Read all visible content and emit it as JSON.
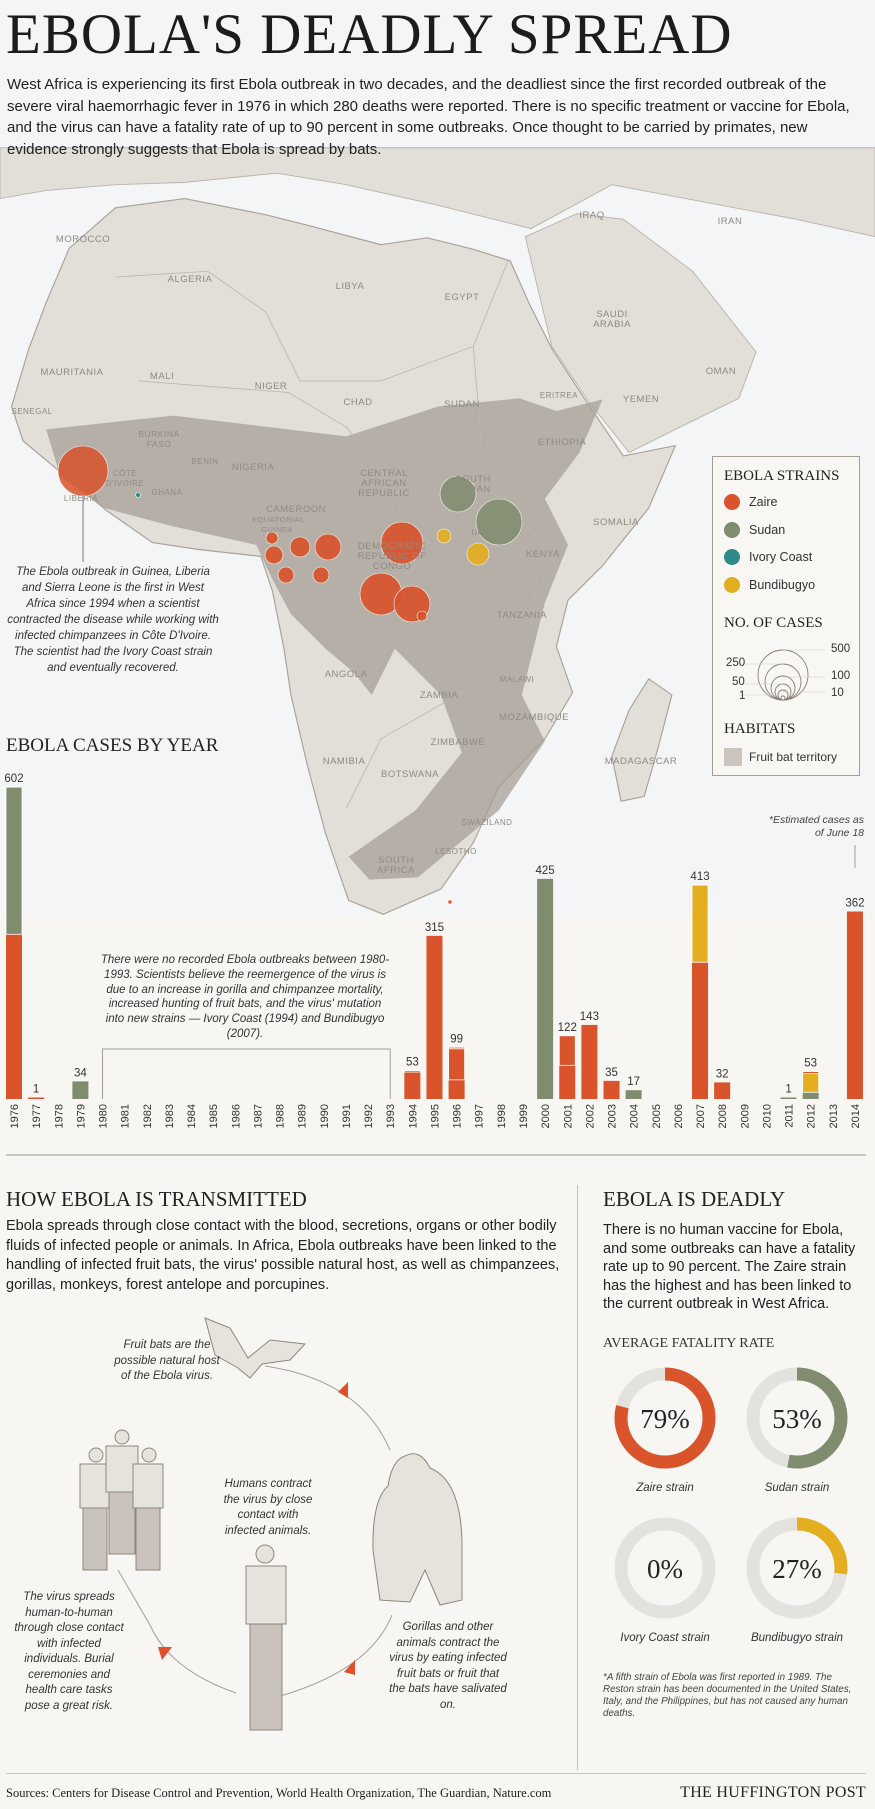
{
  "title": "EBOLA'S DEADLY SPREAD",
  "intro": "West Africa is experiencing its first Ebola outbreak in two decades, and the deadliest since the first recorded outbreak of the severe viral haemorrhagic fever in 1976 in which 280 deaths were reported. There is no specific treatment or vaccine for Ebola, and the virus can have a fatality rate of up to 90 percent in some outbreaks. Once thought to be carried by primates, new evidence strongly suggests that Ebola is spread by bats.",
  "colors": {
    "zaire": "#d9532b",
    "sudan": "#7f8c6d",
    "ivory_coast": "#2f8a8a",
    "bundibugyo": "#e3ae1f",
    "habitat": "#a79f95",
    "land": "#e2dfd9",
    "track": "#e4e2dc"
  },
  "map": {
    "labels": [
      "MOROCCO",
      "ALGERIA",
      "LIBYA",
      "EGYPT",
      "IRAQ",
      "IRAN",
      "SAUDI ARABIA",
      "OMAN",
      "YEMEN",
      "MAURITANIA",
      "MALI",
      "NIGER",
      "CHAD",
      "SUDAN",
      "ERITREA",
      "ETHIOPIA",
      "SOMALIA",
      "SENEGAL",
      "BURKINA FASO",
      "NIGERIA",
      "GHANA",
      "CÔTE D'IVOIRE",
      "LIBERIA",
      "CAMEROON",
      "CENTRAL AFRICAN REPUBLIC",
      "SOUTH SUDAN",
      "DEMOCRATIC REPUBLIC OF CONGO",
      "KENYA",
      "TANZANIA",
      "ANGOLA",
      "ZAMBIA",
      "MALAWI",
      "MOZAMBIQUE",
      "NAMIBIA",
      "BOTSWANA",
      "ZIMBABWE",
      "MADAGASCAR",
      "SOUTH AFRICA",
      "SWAZILAND",
      "LESOTHO",
      "EQUATORIAL GUINEA",
      "UGANDA",
      "BENIN"
    ],
    "note": "The Ebola outbreak in Guinea, Liberia and Sierra Leone is the first in West Africa since 1994 when a scientist contracted the disease while working with infected chimpanzees in Côte D'Ivoire. The scientist had the Ivory Coast strain and eventually recovered."
  },
  "legend": {
    "strains_title": "EBOLA STRAINS",
    "strains": [
      "Zaire",
      "Sudan",
      "Ivory Coast",
      "Bundibugyo"
    ],
    "cases_title": "NO. OF CASES",
    "cases_sizes": [
      "500",
      "250",
      "100",
      "50",
      "10",
      "1"
    ],
    "habitats_title": "HABITATS",
    "habitat_item": "Fruit bat territory"
  },
  "chart_data": {
    "type": "bar",
    "stacked": true,
    "title": "EBOLA CASES BY YEAR",
    "xlabel": "",
    "ylabel": "",
    "ylim": [
      0,
      602
    ],
    "categories": [
      "1976",
      "1977",
      "1978",
      "1979",
      "1980",
      "1981",
      "1982",
      "1983",
      "1984",
      "1985",
      "1986",
      "1987",
      "1988",
      "1989",
      "1990",
      "1991",
      "1992",
      "1993",
      "1994",
      "1995",
      "1996",
      "1997",
      "1998",
      "1999",
      "2000",
      "2001",
      "2002",
      "2003",
      "2004",
      "2005",
      "2006",
      "2007",
      "2008",
      "2009",
      "2010",
      "2011",
      "2012",
      "2013",
      "2014"
    ],
    "bars": [
      {
        "year": "1976",
        "total": 602,
        "segments": [
          {
            "strain": "zaire",
            "value": 318
          },
          {
            "strain": "sudan",
            "value": 284
          }
        ]
      },
      {
        "year": "1977",
        "total": 1,
        "segments": [
          {
            "strain": "zaire",
            "value": 1
          }
        ]
      },
      {
        "year": "1979",
        "total": 34,
        "segments": [
          {
            "strain": "sudan",
            "value": 34
          }
        ]
      },
      {
        "year": "1994",
        "total": 53,
        "segments": [
          {
            "strain": "zaire",
            "value": 52
          },
          {
            "strain": "ivory_coast",
            "value": 1
          }
        ]
      },
      {
        "year": "1995",
        "total": 315,
        "segments": [
          {
            "strain": "zaire",
            "value": 315
          }
        ]
      },
      {
        "year": "1996",
        "total": 99,
        "segments": [
          {
            "strain": "zaire",
            "value": 37
          },
          {
            "strain": "zaire",
            "value": 60
          },
          {
            "strain": "zaire",
            "value": 2
          }
        ]
      },
      {
        "year": "2000",
        "total": 425,
        "segments": [
          {
            "strain": "sudan",
            "value": 425
          }
        ]
      },
      {
        "year": "2001",
        "total": 122,
        "segments": [
          {
            "strain": "zaire",
            "value": 65
          },
          {
            "strain": "zaire",
            "value": 57
          }
        ]
      },
      {
        "year": "2002",
        "total": 143,
        "segments": [
          {
            "strain": "zaire",
            "value": 143
          }
        ]
      },
      {
        "year": "2003",
        "total": 35,
        "segments": [
          {
            "strain": "zaire",
            "value": 35
          }
        ]
      },
      {
        "year": "2004",
        "total": 17,
        "segments": [
          {
            "strain": "sudan",
            "value": 17
          }
        ]
      },
      {
        "year": "2007",
        "total": 413,
        "segments": [
          {
            "strain": "zaire",
            "value": 264
          },
          {
            "strain": "bundibugyo",
            "value": 149
          }
        ]
      },
      {
        "year": "2008",
        "total": 32,
        "segments": [
          {
            "strain": "zaire",
            "value": 32
          }
        ]
      },
      {
        "year": "2011",
        "total": 1,
        "segments": [
          {
            "strain": "sudan",
            "value": 1
          }
        ]
      },
      {
        "year": "2012",
        "total": 53,
        "segments": [
          {
            "strain": "sudan",
            "value": 13
          },
          {
            "strain": "bundibugyo",
            "value": 36
          },
          {
            "strain": "zaire",
            "value": 4
          }
        ]
      },
      {
        "year": "2014",
        "total": 362,
        "segments": [
          {
            "strain": "zaire",
            "value": 362
          }
        ]
      }
    ],
    "annotations": {
      "gap_note": "There were no recorded Ebola outbreaks between 1980-1993. Scientists believe the reemergence of the virus is due to an increase in gorilla and chimpanzee mortality, increased hunting of fruit bats, and the virus' mutation into new strains — Ivory Coast (1994) and Bundibugyo (2007).",
      "gap_range": [
        "1980",
        "1993"
      ],
      "estimate_note": "*Estimated cases as of June 18",
      "estimate_year": "2014"
    }
  },
  "transmission": {
    "heading": "HOW EBOLA IS TRANSMITTED",
    "body": "Ebola spreads through close contact with the blood, secretions, organs or other bodily fluids of infected people or animals. In Africa, Ebola outbreaks have been linked to the handling of infected fruit bats, the virus' possible natural host, as well as chimpanzees, gorillas, monkeys, forest antelope and porcupines.",
    "bats": "Fruit bats are the possible natural host of the Ebola virus.",
    "humans": "Humans contract the virus by close contact with infected animals.",
    "gorillas": "Gorillas and other animals contract the virus by eating infected fruit bats or fruit that the bats have salivated on.",
    "spread": "The virus spreads human-to-human through close contact with infected individuals. Burial ceremonies and health care tasks pose a great risk."
  },
  "deadly": {
    "heading": "EBOLA IS DEADLY",
    "body": "There is no human vaccine for Ebola, and some outbreaks can have a fatality rate up to 90 percent. The Zaire strain has the highest and has been linked to the current outbreak in West Africa.",
    "subheading": "AVERAGE FATALITY RATE",
    "rates": [
      {
        "label": "79%",
        "value": 79,
        "name": "Zaire strain",
        "color": "#d9532b"
      },
      {
        "label": "53%",
        "value": 53,
        "name": "Sudan strain",
        "color": "#7f8c6d"
      },
      {
        "label": "0%",
        "value": 0,
        "name": "Ivory Coast strain",
        "color": "#2f8a8a"
      },
      {
        "label": "27%",
        "value": 27,
        "name": "Bundibugyo strain",
        "color": "#e3ae1f"
      }
    ],
    "footnote": "*A fifth strain of Ebola was first reported in 1989. The Reston strain has been documented in the United States, Italy, and the Philippines, but has not caused any human deaths."
  },
  "footer": {
    "sources": "Sources: Centers for Disease Control and Prevention, World Health Organization, The Guardian, Nature.com",
    "brand": "THE HUFFINGTON POST"
  }
}
